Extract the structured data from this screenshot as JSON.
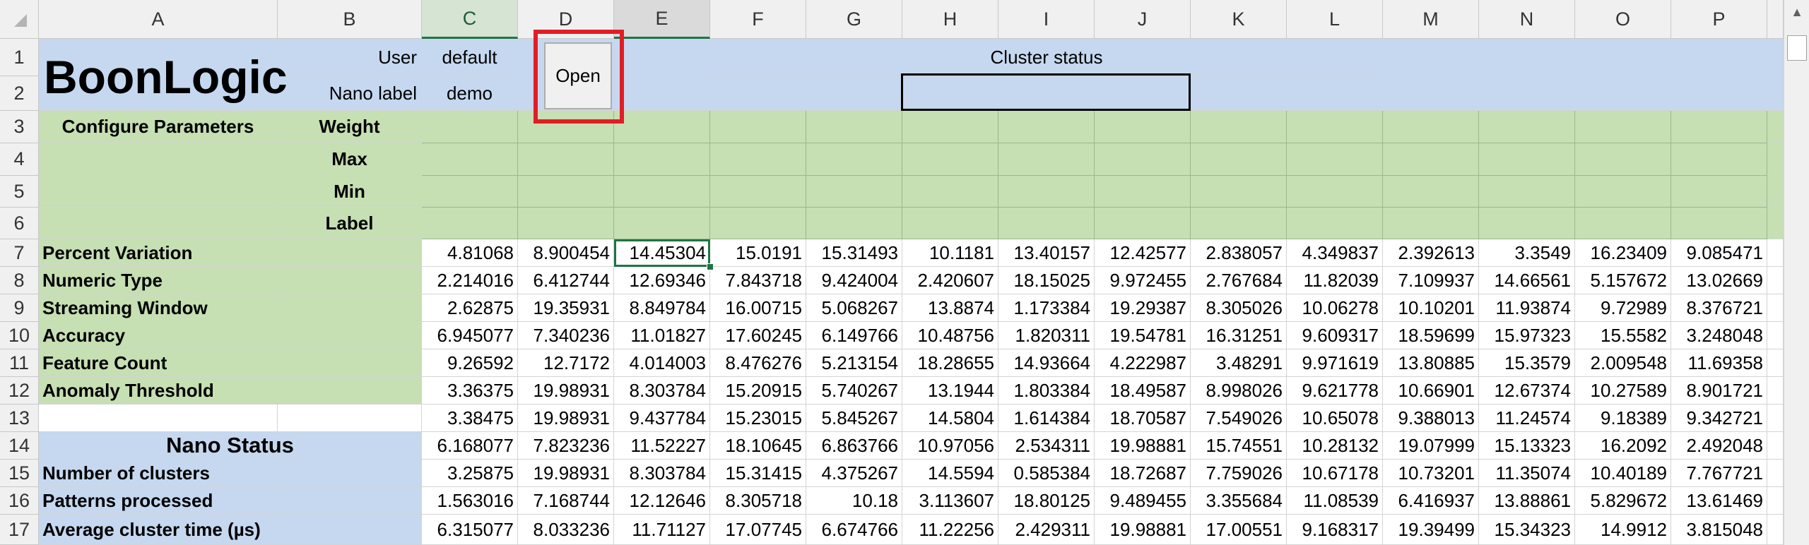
{
  "columns": [
    "A",
    "B",
    "C",
    "D",
    "E",
    "F",
    "G",
    "H",
    "I",
    "J",
    "K",
    "L",
    "M",
    "N",
    "O",
    "P"
  ],
  "rows": [
    "1",
    "2",
    "3",
    "4",
    "5",
    "6",
    "7",
    "8",
    "9",
    "10",
    "11",
    "12",
    "13",
    "14",
    "15",
    "16",
    "17"
  ],
  "header": {
    "brand": "BoonLogic",
    "user_label": "User",
    "user_value": "default",
    "nano_label": "Nano label",
    "nano_value": "demo",
    "open_button": "Open",
    "cluster_status": "Cluster status"
  },
  "config": {
    "title": "Configure Parameters",
    "weight": "Weight",
    "max": "Max",
    "min": "Min",
    "label": "Label"
  },
  "params": [
    "Percent Variation",
    "Numeric Type",
    "Streaming Window",
    "Accuracy",
    "Feature Count",
    "Anomaly Threshold"
  ],
  "status": {
    "title": "Nano Status",
    "items": [
      "Number of clusters",
      "Patterns processed",
      "Average cluster time (µs)"
    ]
  },
  "data_rows": [
    [
      "4.81068",
      "8.900454",
      "14.45304",
      "15.0191",
      "15.31493",
      "10.1181",
      "13.40157",
      "12.42577",
      "2.838057",
      "4.349837",
      "2.392613",
      "3.3549",
      "16.23409",
      "9.085471"
    ],
    [
      "2.214016",
      "6.412744",
      "12.69346",
      "7.843718",
      "9.424004",
      "2.420607",
      "18.15025",
      "9.972455",
      "2.767684",
      "11.82039",
      "7.109937",
      "14.66561",
      "5.157672",
      "13.02669"
    ],
    [
      "2.62875",
      "19.35931",
      "8.849784",
      "16.00715",
      "5.068267",
      "13.8874",
      "1.173384",
      "19.29387",
      "8.305026",
      "10.06278",
      "10.10201",
      "11.93874",
      "9.72989",
      "8.376721"
    ],
    [
      "6.945077",
      "7.340236",
      "11.01827",
      "17.60245",
      "6.149766",
      "10.48756",
      "1.820311",
      "19.54781",
      "16.31251",
      "9.609317",
      "18.59699",
      "15.97323",
      "15.5582",
      "3.248048"
    ],
    [
      "9.26592",
      "12.7172",
      "4.014003",
      "8.476276",
      "5.213154",
      "18.28655",
      "14.93664",
      "4.222987",
      "3.48291",
      "9.971619",
      "13.80885",
      "15.3579",
      "2.009548",
      "11.69358"
    ],
    [
      "3.36375",
      "19.98931",
      "8.303784",
      "15.20915",
      "5.740267",
      "13.1944",
      "1.803384",
      "18.49587",
      "8.998026",
      "9.621778",
      "10.66901",
      "12.67374",
      "10.27589",
      "8.901721"
    ],
    [
      "3.38475",
      "19.98931",
      "9.437784",
      "15.23015",
      "5.845267",
      "14.5804",
      "1.614384",
      "18.70587",
      "7.549026",
      "10.65078",
      "9.388013",
      "11.24574",
      "9.18389",
      "9.342721"
    ],
    [
      "6.168077",
      "7.823236",
      "11.52227",
      "18.10645",
      "6.863766",
      "10.97056",
      "2.534311",
      "19.98881",
      "15.74551",
      "10.28132",
      "19.07999",
      "15.13323",
      "16.2092",
      "2.492048"
    ],
    [
      "3.25875",
      "19.98931",
      "8.303784",
      "15.31415",
      "4.375267",
      "14.5594",
      "0.585384",
      "18.72687",
      "7.759026",
      "10.67178",
      "10.73201",
      "11.35074",
      "10.40189",
      "7.767721"
    ],
    [
      "1.563016",
      "7.168744",
      "12.12646",
      "8.305718",
      "10.18",
      "3.113607",
      "18.80125",
      "9.489455",
      "3.355684",
      "11.08539",
      "6.416937",
      "13.88861",
      "5.829672",
      "13.61469"
    ],
    [
      "6.315077",
      "8.033236",
      "11.71127",
      "17.07745",
      "6.674766",
      "11.22256",
      "2.429311",
      "19.98881",
      "17.00551",
      "9.168317",
      "19.39499",
      "15.34323",
      "14.9912",
      "3.815048"
    ]
  ],
  "colors": {
    "header_blue": "#c5d8ef",
    "param_green": "#c6dfb3",
    "highlight_red": "#e21d25",
    "excel_green": "#217346"
  }
}
